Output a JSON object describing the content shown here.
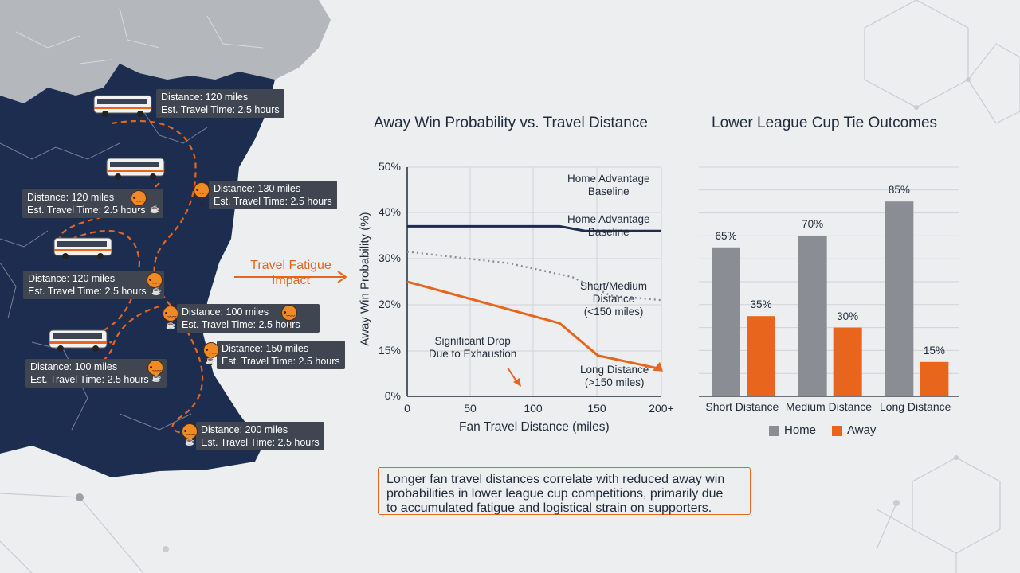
{
  "colors": {
    "navy": "#1c2d4f",
    "orange": "#e8651d",
    "gray": "#8a8d93",
    "map_land_gray": "#b4b7bc",
    "background": "#eceef0"
  },
  "map": {
    "labels": [
      {
        "distance": "Distance: 120 miles",
        "time": "Est. Travel Time: 2.5 hours"
      },
      {
        "distance": "Distance: 120 miles",
        "time": "Est. Travel Time: 2.5 hours"
      },
      {
        "distance": "Distance: 130 miles",
        "time": "Est. Travel Time: 2.5 hours"
      },
      {
        "distance": "Distance: 120 miles",
        "time": "Est. Travel Time: 2.5 hours"
      },
      {
        "distance": "Distance: 100 miles",
        "time": "Est. Travel Time: 2.5 hours"
      },
      {
        "distance": "Distance: 150 miles",
        "time": "Est. Travel Time: 2.5 hours"
      },
      {
        "distance": "Distance: 100 miles",
        "time": "Est. Travel Time: 2.5 hours"
      },
      {
        "distance": "Distance: 200 miles",
        "time": "Est. Travel Time: 2.5 hours"
      }
    ],
    "icons": {
      "vehicle": "bus-icon",
      "tired_face": "tired-face-icon",
      "drink": "coffee-cup-icon"
    }
  },
  "fatigue_annotation": {
    "line1": "Travel Fatigue",
    "line2": "Impact"
  },
  "chart_data": [
    {
      "type": "line",
      "title": "Away Win Probability vs. Travel Distance",
      "xlabel": "Fan Travel Distance (miles)",
      "ylabel": "Away Win Probability (%)",
      "x_ticks": [
        "0",
        "50",
        "100",
        "150",
        "200+"
      ],
      "y_ticks": [
        "0%",
        "15%",
        "20%",
        "30%",
        "40%",
        "50%"
      ],
      "xlim": [
        0,
        200
      ],
      "grid": true,
      "series": [
        {
          "key": "home_baseline",
          "color": "#1c2d4f",
          "style": "solid",
          "x": [
            0,
            120,
            140,
            200
          ],
          "y": [
            37,
            37,
            36,
            36
          ]
        },
        {
          "key": "short_medium",
          "color": "#8a8d93",
          "style": "dotted",
          "x": [
            0,
            80,
            130,
            160,
            200
          ],
          "y": [
            31.5,
            29,
            26,
            22,
            21
          ]
        },
        {
          "key": "long_distance",
          "color": "#e8651d",
          "style": "solid",
          "x": [
            0,
            120,
            150,
            200
          ],
          "y": [
            25,
            18,
            13.5,
            9
          ]
        }
      ],
      "annotations": {
        "home_top": {
          "line1": "Home Advantage",
          "line2": "Baseline"
        },
        "home_mid": {
          "line1": "Home Advantage",
          "line2": "Baseline"
        },
        "short_medium": {
          "line1": "Short/Medium",
          "line2": "Distance",
          "line3": "(<150 miles)"
        },
        "long_distance": {
          "line1": "Long Distance",
          "line2": "(>150 miles)"
        },
        "drop": {
          "line1": "Significant Drop",
          "line2": "Due to Exhaustion"
        }
      }
    },
    {
      "type": "bar",
      "title": "Lower League Cup Tie Outcomes",
      "categories": [
        "Short Distance",
        "Medium Distance",
        "Long Distance"
      ],
      "series": [
        {
          "name": "Home",
          "color": "#8a8d93",
          "values": [
            65,
            70,
            85
          ],
          "labels": [
            "65%",
            "70%",
            "85%"
          ]
        },
        {
          "name": "Away",
          "color": "#e8651d",
          "values": [
            35,
            30,
            15
          ],
          "labels": [
            "35%",
            "30%",
            "15%"
          ]
        }
      ],
      "ylim": [
        0,
        100
      ],
      "grid": true,
      "legend": "bottom"
    }
  ],
  "summary": {
    "line1": "Longer fan travel distances correlate with reduced away win",
    "line2": "probabilities in lower league cup competitions, primarily due",
    "line3": "to accumulated fatigue and logistical strain on supporters."
  }
}
